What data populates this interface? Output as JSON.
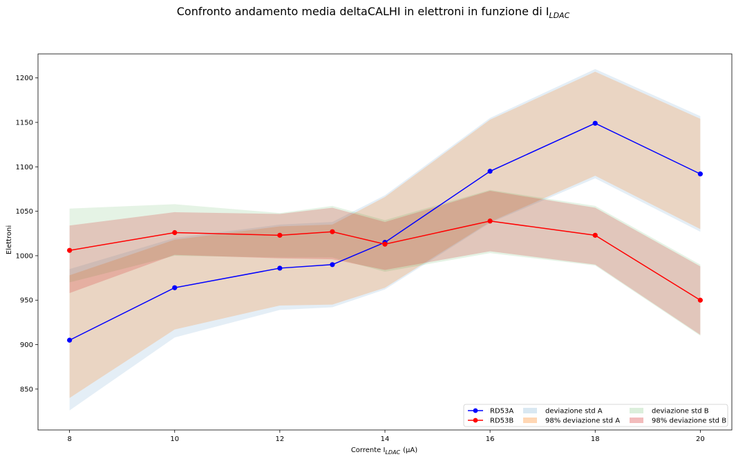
{
  "chart_data": {
    "type": "line",
    "title": "Confronto andamento media deltaCALHI in elettroni in funzione di I",
    "title_subscript": "LDAC",
    "xlabel": "Corrente I",
    "xlabel_subscript": "LDAC",
    "xlabel_unit": "(μA)",
    "ylabel": "Elettroni",
    "x": [
      8,
      10,
      12,
      13,
      14,
      16,
      18,
      20
    ],
    "xticks": [
      8,
      10,
      12,
      14,
      16,
      18,
      20
    ],
    "yticks": [
      850,
      900,
      950,
      1000,
      1050,
      1100,
      1150,
      1200
    ],
    "xlim": [
      7.4,
      20.6
    ],
    "ylim": [
      804,
      1227
    ],
    "grid": false,
    "legend_placement": "lower-right",
    "series": [
      {
        "name": "RD53A",
        "color": "#0000ff",
        "marker": "circle",
        "values": [
          905,
          964,
          986,
          990,
          1015,
          1095,
          1149,
          1092
        ]
      },
      {
        "name": "RD53B",
        "color": "#ff0000",
        "marker": "circle",
        "values": [
          1006,
          1026,
          1023,
          1027,
          1013,
          1039,
          1023,
          950
        ]
      }
    ],
    "bands": [
      {
        "name": "deviazione std A",
        "color": "#1f77b4",
        "opacity": 0.12,
        "lower": [
          826,
          908,
          939,
          942,
          962,
          1037,
          1087,
          1027
        ],
        "upper": [
          985,
          1020,
          1035,
          1038,
          1068,
          1155,
          1210,
          1157
        ]
      },
      {
        "name": "98% deviazione std A",
        "color": "#ff7f0e",
        "opacity": 0.22,
        "lower": [
          840,
          917,
          944,
          945,
          964,
          1038,
          1090,
          1030
        ],
        "upper": [
          978,
          1018,
          1033,
          1035,
          1066,
          1153,
          1207,
          1154
        ]
      },
      {
        "name": "deviazione std B",
        "color": "#2ca02c",
        "opacity": 0.12,
        "lower": [
          970,
          1000,
          998,
          998,
          982,
          1003,
          989,
          910
        ],
        "upper": [
          1053,
          1058,
          1048,
          1056,
          1040,
          1074,
          1056,
          990
        ]
      },
      {
        "name": "98% deviazione std B",
        "color": "#d62728",
        "opacity": 0.22,
        "lower": [
          958,
          1001,
          997,
          996,
          984,
          1005,
          990,
          911
        ],
        "upper": [
          1034,
          1049,
          1047,
          1054,
          1038,
          1073,
          1054,
          988
        ]
      }
    ]
  }
}
